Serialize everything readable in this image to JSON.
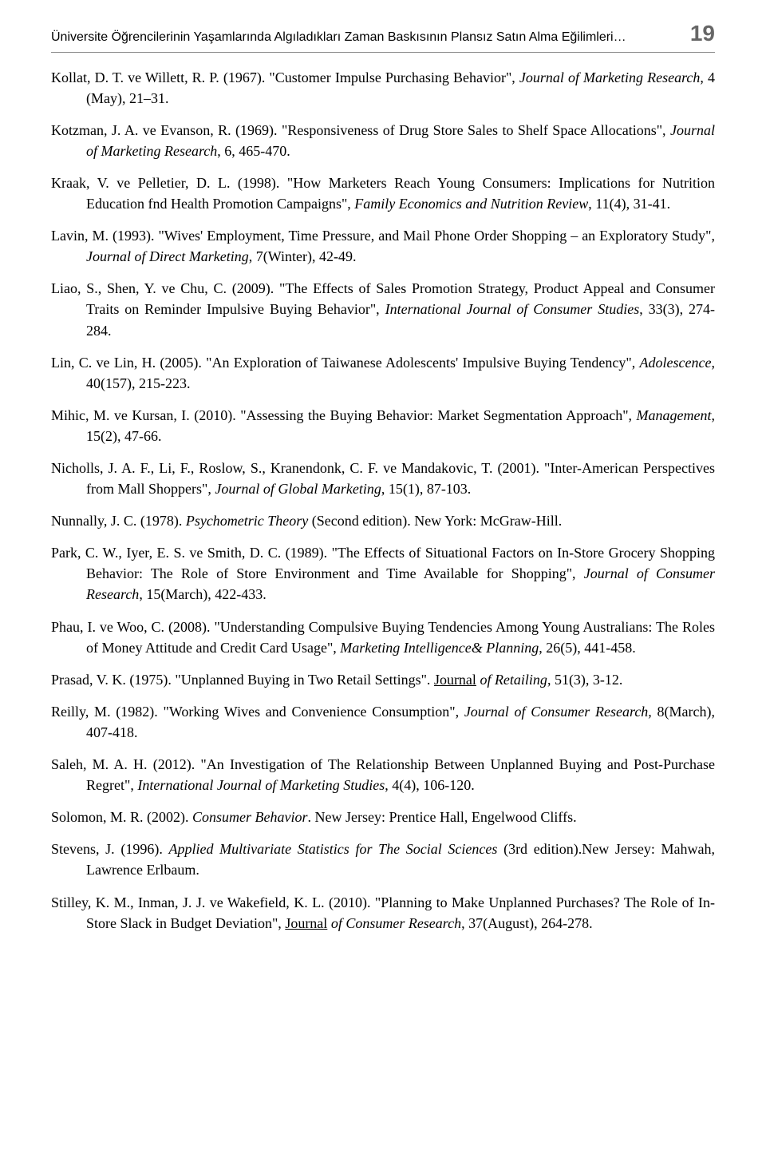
{
  "header": {
    "running_title": "Üniversite Öğrencilerinin Yaşamlarında Algıladıkları Zaman Baskısının Plansız Satın Alma Eğilimleri…",
    "page_number": "19"
  },
  "references": [
    {
      "html": "Kollat, D. T. ve Willett, R. P. (1967). \"Customer Impulse Purchasing Behavior\", <em>Journal of Marketing Research</em>, 4 (May), 21–31."
    },
    {
      "html": "Kotzman, J. A. ve Evanson, R. (1969). \"Responsiveness of Drug Store Sales to Shelf Space Allocations\", <em>Journal of Marketing Research</em>, 6, 465-470."
    },
    {
      "html": "Kraak, V. ve Pelletier, D. L. (1998). \"How Marketers Reach Young Consumers: Implications for Nutrition Education fnd Health Promotion Campaigns\", <em>Family Economics and Nutrition Review</em>, 11(4), 31-41."
    },
    {
      "html": "Lavin, M. (1993). \"Wives' Employment, Time Pressure, and Mail Phone Order Shopping – an Exploratory Study\", <em>Journal of Direct Marketing</em>, 7(Winter), 42-49."
    },
    {
      "html": "Liao, S., Shen, Y. ve Chu, C. (2009). \"The Effects of Sales Promotion Strategy, Product Appeal and Consumer Traits on Reminder Impulsive Buying Behavior\", <em>International Journal of Consumer Studies</em>, 33(3), 274-284."
    },
    {
      "html": "<span class=\"roman\">Lin, C. ve Lin, H. (2005). \"An Exploration of Taiwanese Adolescents' Impulsive Buying Tendency\", <em>Adolescence</em>, 40(157), 215-223.</span>"
    },
    {
      "html": "<span class=\"roman\">Mihic, M. ve Kursan, I. (2010).</span> \"Assessing the Buying Behavior: Market Segmentation Approach\", <em>Management</em>, 15(2), 47-66."
    },
    {
      "html": "<span class=\"roman\">Nicholls, J. A. F., Li, F., Roslow, S., Kranendonk, C. F. ve Mandakovic, T. (2001).</span> \"Inter-American Perspectives from Mall Shoppers\", <em>Journal of Global Marketing</em>, 15(1), 87-103."
    },
    {
      "html": "<span class=\"roman\">Nunnally, J. C. (1978). <em>Psychometric Theory</em> (Second edition). New York: McGraw-Hill.</span>"
    },
    {
      "html": "<span class=\"roman\">Park, C. W., Iyer, E. S. ve Smith, D. C. (1989).</span> \"The Effects of Situational Factors on In-Store Grocery Shopping Behavior: The Role of Store Environment and Time Available for Shopping\", <em>Journal of Consumer Research</em>, 15(March), 422-433."
    },
    {
      "html": "<span class=\"roman\">Phau, I. ve Woo, C. (2008).</span> \"Understanding Compulsive Buying Tendencies Among Young Australians: The Roles of Money Attitude and Credit Card Usage\", <em>Marketing Intelligence&amp; Planning</em>, 26(5), 441-458."
    },
    {
      "html": "<span class=\"roman\">Prasad, V. K. (1975).</span> \"Unplanned Buying in Two Retail Settings\". <span class=\"underline\">Journal</span><em> of Retailing</em>, 51(3), 3-12."
    },
    {
      "html": "<span class=\"roman\">Reilly, M. (1982). \"Working Wives and Convenience Consumption\", <em>Journal of Consumer Research,</em> 8(March), 407-418.</span>"
    },
    {
      "html": "<span class=\"roman\">Saleh, M. A. H. (2012).</span> \"An Investigation of The Relationship Between Unplanned Buying and Post-Purchase Regret\", <em>International Journal of Marketing Studies</em>, 4(4), 106-120."
    },
    {
      "html": "<span class=\"roman\">Solomon, M. R. (2002). <em>Consumer Behavior</em>. New Jersey: Prentice Hall, Engelwood Cliffs.</span>"
    },
    {
      "html": "<span class=\"roman\">Stevens, J. (1996). <em>Applied Multivariate Statistics for The Social Sciences</em> (3rd edition).New Jersey: Mahwah, Lawrence Erlbaum.</span>"
    },
    {
      "html": "<span class=\"roman\">Stilley, K. M., Inman, J. J. ve Wakefield, K. L. (2010).</span> \"Planning to Make Unplanned Purchases? The Role of In-Store Slack in Budget Deviation\", <span class=\"underline\">Journal</span><em> of Consumer Research</em>, 37(August), 264-278."
    }
  ]
}
